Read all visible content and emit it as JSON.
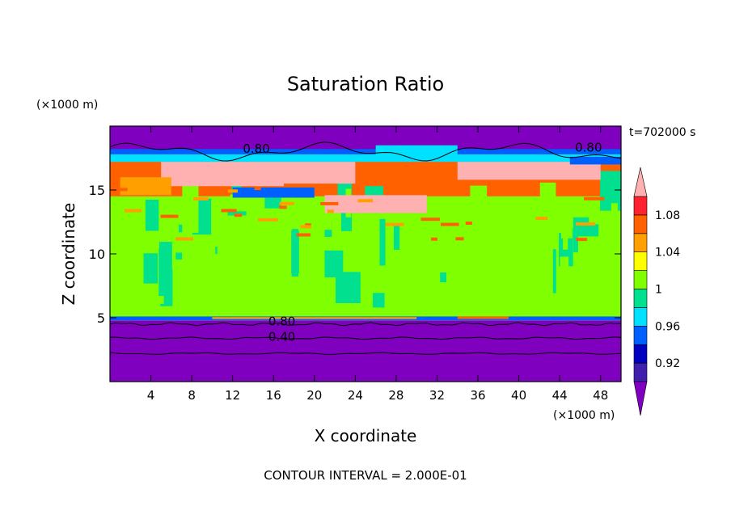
{
  "chart_data": {
    "type": "heatmap",
    "title": "Saturation Ratio",
    "xlabel": "X coordinate",
    "ylabel": "Z coordinate",
    "x_unit": "(×1000 m)",
    "y_unit": "(×1000 m)",
    "time_label": "t=702000 s",
    "footer": "CONTOUR INTERVAL = 2.000E-01",
    "xlim": [
      0,
      50
    ],
    "ylim": [
      0,
      20
    ],
    "x_ticks": [
      "4",
      "8",
      "12",
      "16",
      "20",
      "24",
      "28",
      "32",
      "36",
      "40",
      "44",
      "48"
    ],
    "y_ticks": [
      "5",
      "10",
      "15"
    ],
    "contour_labels": [
      "0.80",
      "0.80",
      "0.80",
      "0.40"
    ],
    "colorbar": {
      "labels": [
        "1.08",
        "1.04",
        "1",
        "0.96",
        "0.92"
      ],
      "levels": [
        0.9,
        0.92,
        0.94,
        0.96,
        0.98,
        1.0,
        1.02,
        1.04,
        1.06,
        1.08,
        1.1
      ],
      "colors": [
        "#7f00bf",
        "#3f1fad",
        "#0000bf",
        "#0060ff",
        "#00e0ff",
        "#00e08f",
        "#7fff00",
        "#ffff00",
        "#ffa000",
        "#ff6000",
        "#ff2030",
        "#ffb0b0"
      ],
      "extend": "both"
    },
    "bands": [
      {
        "z0": 0,
        "z1": 4.8,
        "value": 0.4
      },
      {
        "z0": 4.8,
        "z1": 14.5,
        "value": 1.0
      },
      {
        "z0": 14.5,
        "z1": 17.5,
        "value": 1.06
      },
      {
        "z0": 17.5,
        "z1": 20,
        "value": 0.8
      }
    ]
  }
}
